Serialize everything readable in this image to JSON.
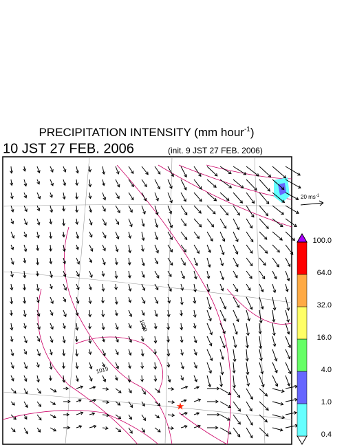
{
  "header": {
    "title": "PRECIPITATION INTENSITY (mm hour",
    "title_superscript": "-1",
    "title_suffix": ")",
    "valid_time": "10 JST 27 FEB. 2006",
    "init_time": "(init. 9 JST 27 FEB. 2006)"
  },
  "wind_scale": {
    "label": "20 ms",
    "superscript": "-1"
  },
  "map": {
    "contour_labels": [
      "1019",
      "1020"
    ]
  },
  "colorbar": {
    "levels": [
      {
        "value": 0.4,
        "label": "0.4"
      },
      {
        "value": 1,
        "label": "1.0"
      },
      {
        "value": 4,
        "label": "4.0"
      },
      {
        "value": 16,
        "label": "16.0"
      },
      {
        "value": 32,
        "label": "32.0"
      },
      {
        "value": 64,
        "label": "64.0"
      },
      {
        "value": 100,
        "label": "100.0"
      }
    ],
    "colors": [
      "#ffffff",
      "#66ffff",
      "#6666ff",
      "#66ff66",
      "#ffff66",
      "#ffaa44",
      "#ff0000",
      "#aa00ff"
    ]
  }
}
